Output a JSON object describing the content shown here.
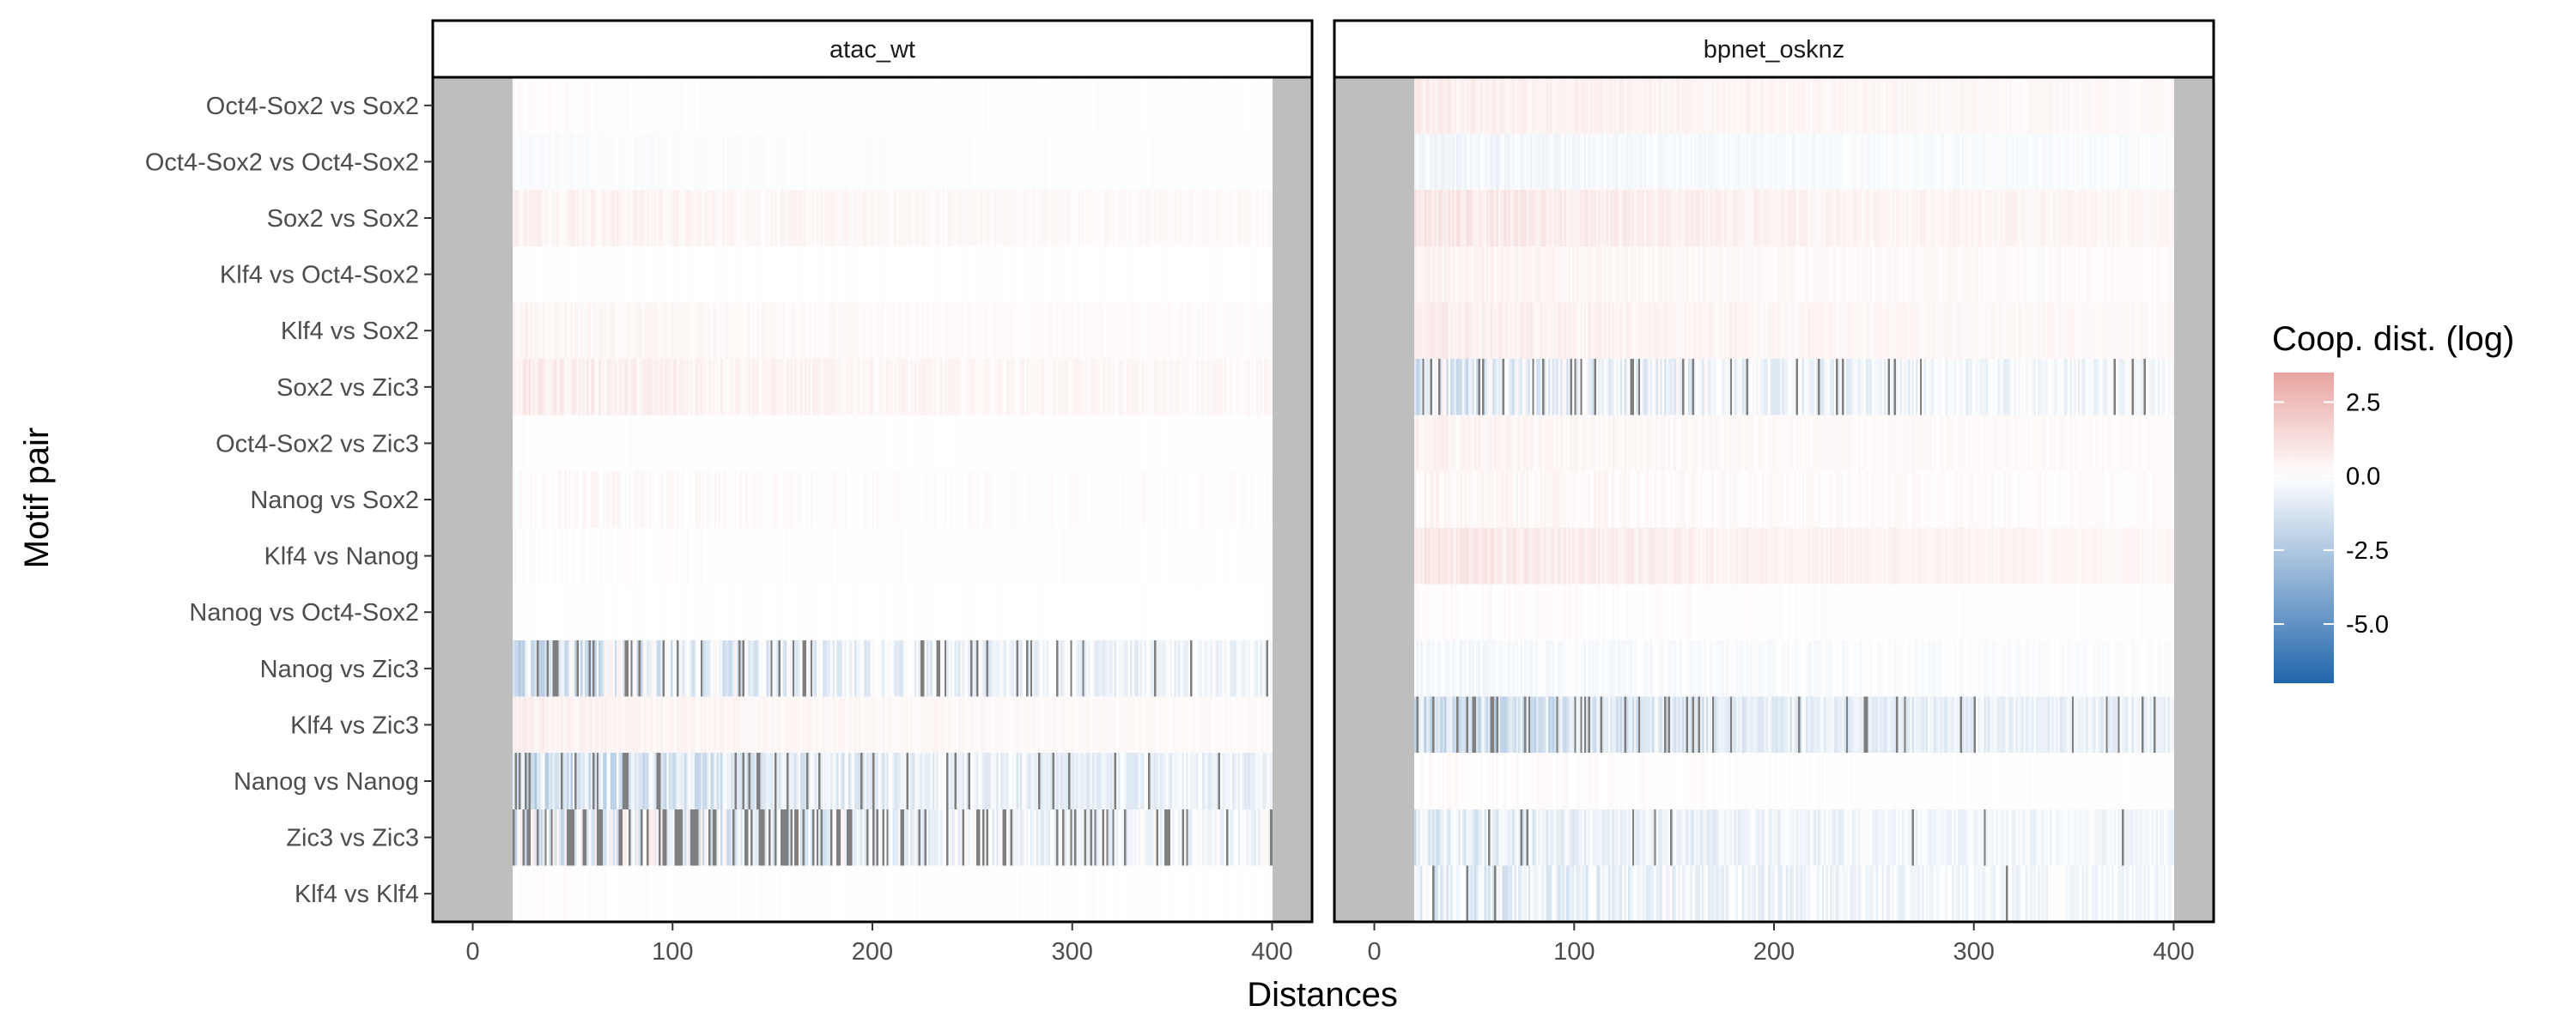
{
  "chart_data": {
    "type": "heatmap",
    "xlabel": "Distances",
    "ylabel": "Motif pair",
    "x_ticks": [
      0,
      100,
      200,
      300,
      400
    ],
    "xlim": [
      -20,
      420
    ],
    "value_range": [
      -7,
      3.5
    ],
    "missing_color": "#bebebe",
    "overflow_color": "#7f7f7f",
    "color_scale": {
      "low": "#2166ac",
      "mid": "#ffffff",
      "high": "#e8a4a0"
    },
    "legend": {
      "title": "Coop. dist. (log)",
      "labels": [
        "2.5",
        "0.0",
        "-2.5",
        "-5.0"
      ],
      "values": [
        2.5,
        0.0,
        -2.5,
        -5.0
      ],
      "position": "right"
    },
    "rows": [
      "Oct4-Sox2 vs Sox2",
      "Oct4-Sox2 vs Oct4-Sox2",
      "Sox2 vs Sox2",
      "Klf4 vs Oct4-Sox2",
      "Klf4 vs Sox2",
      "Sox2 vs Zic3",
      "Oct4-Sox2 vs Zic3",
      "Nanog vs Sox2",
      "Klf4 vs Nanog",
      "Nanog vs Oct4-Sox2",
      "Nanog vs Zic3",
      "Klf4 vs Zic3",
      "Nanog vs Nanog",
      "Zic3 vs Zic3",
      "Klf4 vs Klf4"
    ],
    "panels": [
      {
        "name": "atac_wt",
        "data_range": [
          20,
          400
        ],
        "profiles": [
          {
            "base": 0.08,
            "noise": 0.08,
            "gap_rate": 0.0
          },
          {
            "base": -0.12,
            "noise": 0.08,
            "gap_rate": 0.0
          },
          {
            "base": 0.35,
            "noise": 0.25,
            "gap_rate": 0.0
          },
          {
            "base": 0.02,
            "noise": 0.05,
            "gap_rate": 0.0
          },
          {
            "base": 0.25,
            "noise": 0.15,
            "gap_rate": 0.0
          },
          {
            "base": 0.45,
            "noise": 0.35,
            "gap_rate": 0.0
          },
          {
            "base": 0.05,
            "noise": 0.06,
            "gap_rate": 0.0
          },
          {
            "base": 0.12,
            "noise": 0.25,
            "gap_rate": 0.0
          },
          {
            "base": 0.08,
            "noise": 0.1,
            "gap_rate": 0.0
          },
          {
            "base": 0.02,
            "noise": 0.03,
            "gap_rate": 0.0
          },
          {
            "base": -0.6,
            "noise": 1.2,
            "gap_rate": 0.12
          },
          {
            "base": 0.35,
            "noise": 0.2,
            "gap_rate": 0.0
          },
          {
            "base": -0.9,
            "noise": 1.0,
            "gap_rate": 0.1
          },
          {
            "base": -0.5,
            "noise": 1.3,
            "gap_rate": 0.3
          },
          {
            "base": 0.05,
            "noise": 0.12,
            "gap_rate": 0.0
          }
        ]
      },
      {
        "name": "bpnet_osknz",
        "data_range": [
          20,
          400
        ],
        "profiles": [
          {
            "base": 0.45,
            "noise": 0.25,
            "gap_rate": 0.0
          },
          {
            "base": -0.3,
            "noise": 0.25,
            "gap_rate": 0.0
          },
          {
            "base": 0.6,
            "noise": 0.35,
            "gap_rate": 0.0
          },
          {
            "base": 0.3,
            "noise": 0.2,
            "gap_rate": 0.0
          },
          {
            "base": 0.45,
            "noise": 0.25,
            "gap_rate": 0.0
          },
          {
            "base": -0.5,
            "noise": 1.0,
            "gap_rate": 0.08
          },
          {
            "base": 0.3,
            "noise": 0.2,
            "gap_rate": 0.0
          },
          {
            "base": 0.25,
            "noise": 0.25,
            "gap_rate": 0.0
          },
          {
            "base": 0.6,
            "noise": 0.3,
            "gap_rate": 0.0
          },
          {
            "base": 0.1,
            "noise": 0.12,
            "gap_rate": 0.0
          },
          {
            "base": -0.2,
            "noise": 0.25,
            "gap_rate": 0.0
          },
          {
            "base": -1.0,
            "noise": 0.9,
            "gap_rate": 0.1
          },
          {
            "base": 0.1,
            "noise": 0.15,
            "gap_rate": 0.0
          },
          {
            "base": -0.6,
            "noise": 0.6,
            "gap_rate": 0.02
          },
          {
            "base": -0.5,
            "noise": 0.8,
            "gap_rate": 0.02
          }
        ]
      }
    ]
  }
}
